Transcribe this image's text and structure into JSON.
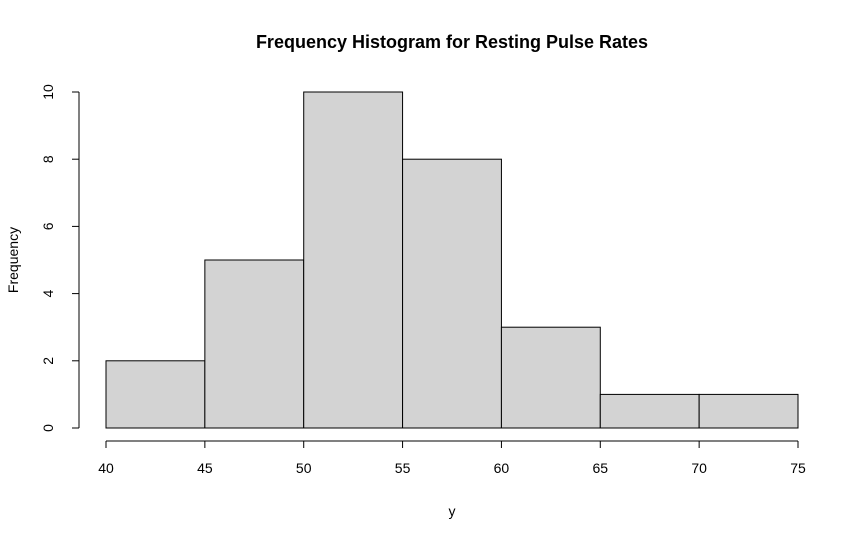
{
  "chart_data": {
    "type": "bar",
    "title": "Frequency Histogram for Resting Pulse Rates",
    "xlabel": "y",
    "ylabel": "Frequency",
    "bins": [
      [
        40,
        45
      ],
      [
        45,
        50
      ],
      [
        50,
        55
      ],
      [
        55,
        60
      ],
      [
        60,
        65
      ],
      [
        65,
        70
      ],
      [
        70,
        75
      ]
    ],
    "values": [
      2,
      5,
      10,
      8,
      3,
      1,
      1
    ],
    "xlim": [
      40,
      75
    ],
    "ylim": [
      0,
      10
    ],
    "x_ticks": [
      "40",
      "45",
      "50",
      "55",
      "60",
      "65",
      "70",
      "75"
    ],
    "y_ticks": [
      "0",
      "2",
      "4",
      "6",
      "8",
      "10"
    ],
    "bar_color": "#d3d3d3",
    "edge_color": "#000000",
    "grid": false
  }
}
